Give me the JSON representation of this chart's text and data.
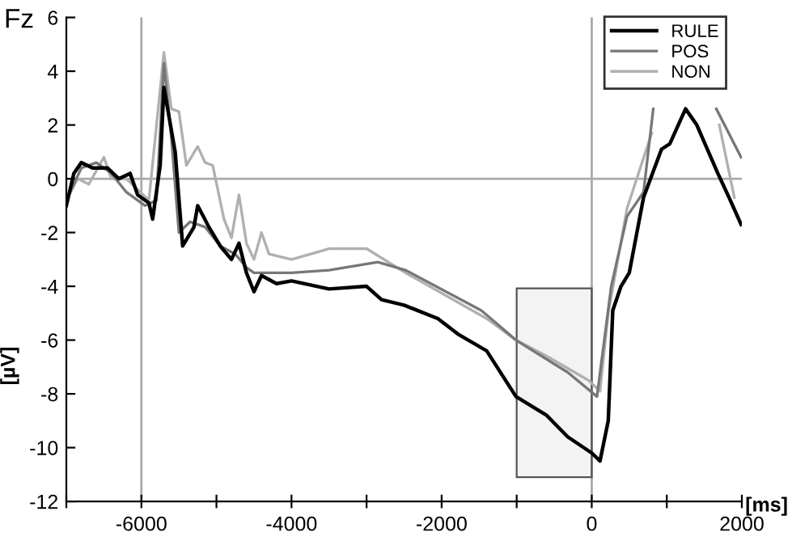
{
  "chart_data": {
    "type": "line",
    "xlabel": "[ms]",
    "ylabel": "[µV]",
    "annotations": [
      "Fz"
    ],
    "xlim": [
      -7000,
      2000
    ],
    "ylim": [
      -12,
      6
    ],
    "xticks": [
      {
        "value": -7000,
        "label": null
      },
      -6000,
      {
        "value": -5000,
        "label": null
      },
      -4000,
      {
        "value": -3000,
        "label": null
      },
      -2000,
      {
        "value": -1000,
        "label": null
      },
      0,
      {
        "value": 1000,
        "label": null
      },
      2000
    ],
    "yticks": [
      -12,
      -10,
      -8,
      -6,
      -4,
      -2,
      0,
      2,
      4,
      6
    ],
    "grid": false,
    "legend": "top right",
    "marker": "none",
    "line_style": "solid",
    "ref_lines": [
      {
        "axis": "x",
        "value": -6000,
        "color": "#aaaaaa"
      },
      {
        "axis": "x",
        "value": 0,
        "color": "#aaaaaa"
      },
      {
        "axis": "y",
        "value": 0,
        "color": "#aaaaaa"
      }
    ],
    "bands": [
      {
        "axis": "x",
        "from": -1000,
        "to": 0,
        "color": "#555555"
      }
    ],
    "series": [
      {
        "name": "RULE",
        "color": "#000000",
        "x": [
          -7000,
          -6900,
          -6800,
          -6650,
          -6450,
          -6300,
          -6150,
          -6050,
          -5900,
          -5850,
          -5750,
          -5700,
          -5550,
          -5450,
          -5300,
          -5250,
          -5100,
          -4950,
          -4800,
          -4700,
          -4600,
          -4500,
          -4400,
          -4200,
          -4000,
          -3500,
          -3000,
          -2800,
          -2500,
          -2050,
          -1770,
          -1400,
          -1010,
          -600,
          -320,
          0,
          110,
          220,
          280,
          390,
          500,
          690,
          930,
          1040,
          1250,
          1400,
          1680,
          1830,
          1990
        ],
        "values": [
          -1.0,
          0.2,
          0.6,
          0.4,
          0.4,
          0.0,
          0.2,
          -0.6,
          -0.9,
          -1.5,
          0.5,
          3.4,
          1.0,
          -2.5,
          -1.8,
          -1.0,
          -1.8,
          -2.5,
          -3.0,
          -2.4,
          -3.5,
          -4.2,
          -3.6,
          -3.9,
          -3.8,
          -4.1,
          -4.0,
          -4.5,
          -4.7,
          -5.2,
          -5.8,
          -6.4,
          -8.1,
          -8.8,
          -9.6,
          -10.2,
          -10.5,
          -9.0,
          -4.9,
          -4.0,
          -3.5,
          -0.7,
          1.1,
          1.3,
          2.6,
          2.0,
          0.2,
          -0.7,
          -1.7
        ]
      },
      {
        "name": "POS",
        "color": "#777777",
        "x": [
          -7000,
          -6800,
          -6600,
          -6400,
          -6200,
          -5950,
          -5800,
          -5700,
          -5600,
          -5500,
          -5350,
          -5150,
          -4950,
          -4750,
          -4600,
          -4500,
          -4000,
          -3500,
          -2850,
          -2480,
          -1470,
          -1010,
          -320,
          70,
          260,
          470,
          690,
          820,
          900,
          1000,
          1660,
          1990
        ],
        "values": [
          -0.8,
          0.4,
          0.6,
          0.2,
          -0.5,
          -1.0,
          -0.8,
          4.3,
          1.5,
          -2.0,
          -1.6,
          -1.8,
          -2.5,
          -2.8,
          -3.3,
          -3.5,
          -3.5,
          -3.4,
          -3.1,
          -3.4,
          -4.9,
          -6.0,
          -7.2,
          -8.1,
          -4.0,
          -1.4,
          -0.5,
          2.6,
          null,
          null,
          2.6,
          0.8
        ]
      },
      {
        "name": "NON",
        "color": "#b0b0b0",
        "x": [
          -7000,
          -6850,
          -6700,
          -6500,
          -6400,
          -6200,
          -6050,
          -5900,
          -5700,
          -5600,
          -5500,
          -5400,
          -5250,
          -5150,
          -5050,
          -4900,
          -4800,
          -4700,
          -4600,
          -4500,
          -4400,
          -4300,
          -4000,
          -3500,
          -3000,
          -2480,
          -1400,
          -1010,
          -600,
          -40,
          110,
          220,
          470,
          800,
          900,
          1000,
          1700,
          1900
        ],
        "values": [
          -0.8,
          0.0,
          -0.2,
          0.8,
          0.0,
          0.0,
          -0.4,
          -0.8,
          4.7,
          2.6,
          2.5,
          0.5,
          1.2,
          0.6,
          0.5,
          -1.5,
          -2.2,
          -0.6,
          -2.4,
          -3.0,
          -2.0,
          -2.8,
          -3.0,
          -2.6,
          -2.6,
          -3.5,
          -5.2,
          -6.0,
          -6.6,
          -7.5,
          -7.9,
          -5.0,
          -1.1,
          1.7,
          null,
          null,
          2.0,
          -0.7
        ]
      }
    ]
  }
}
